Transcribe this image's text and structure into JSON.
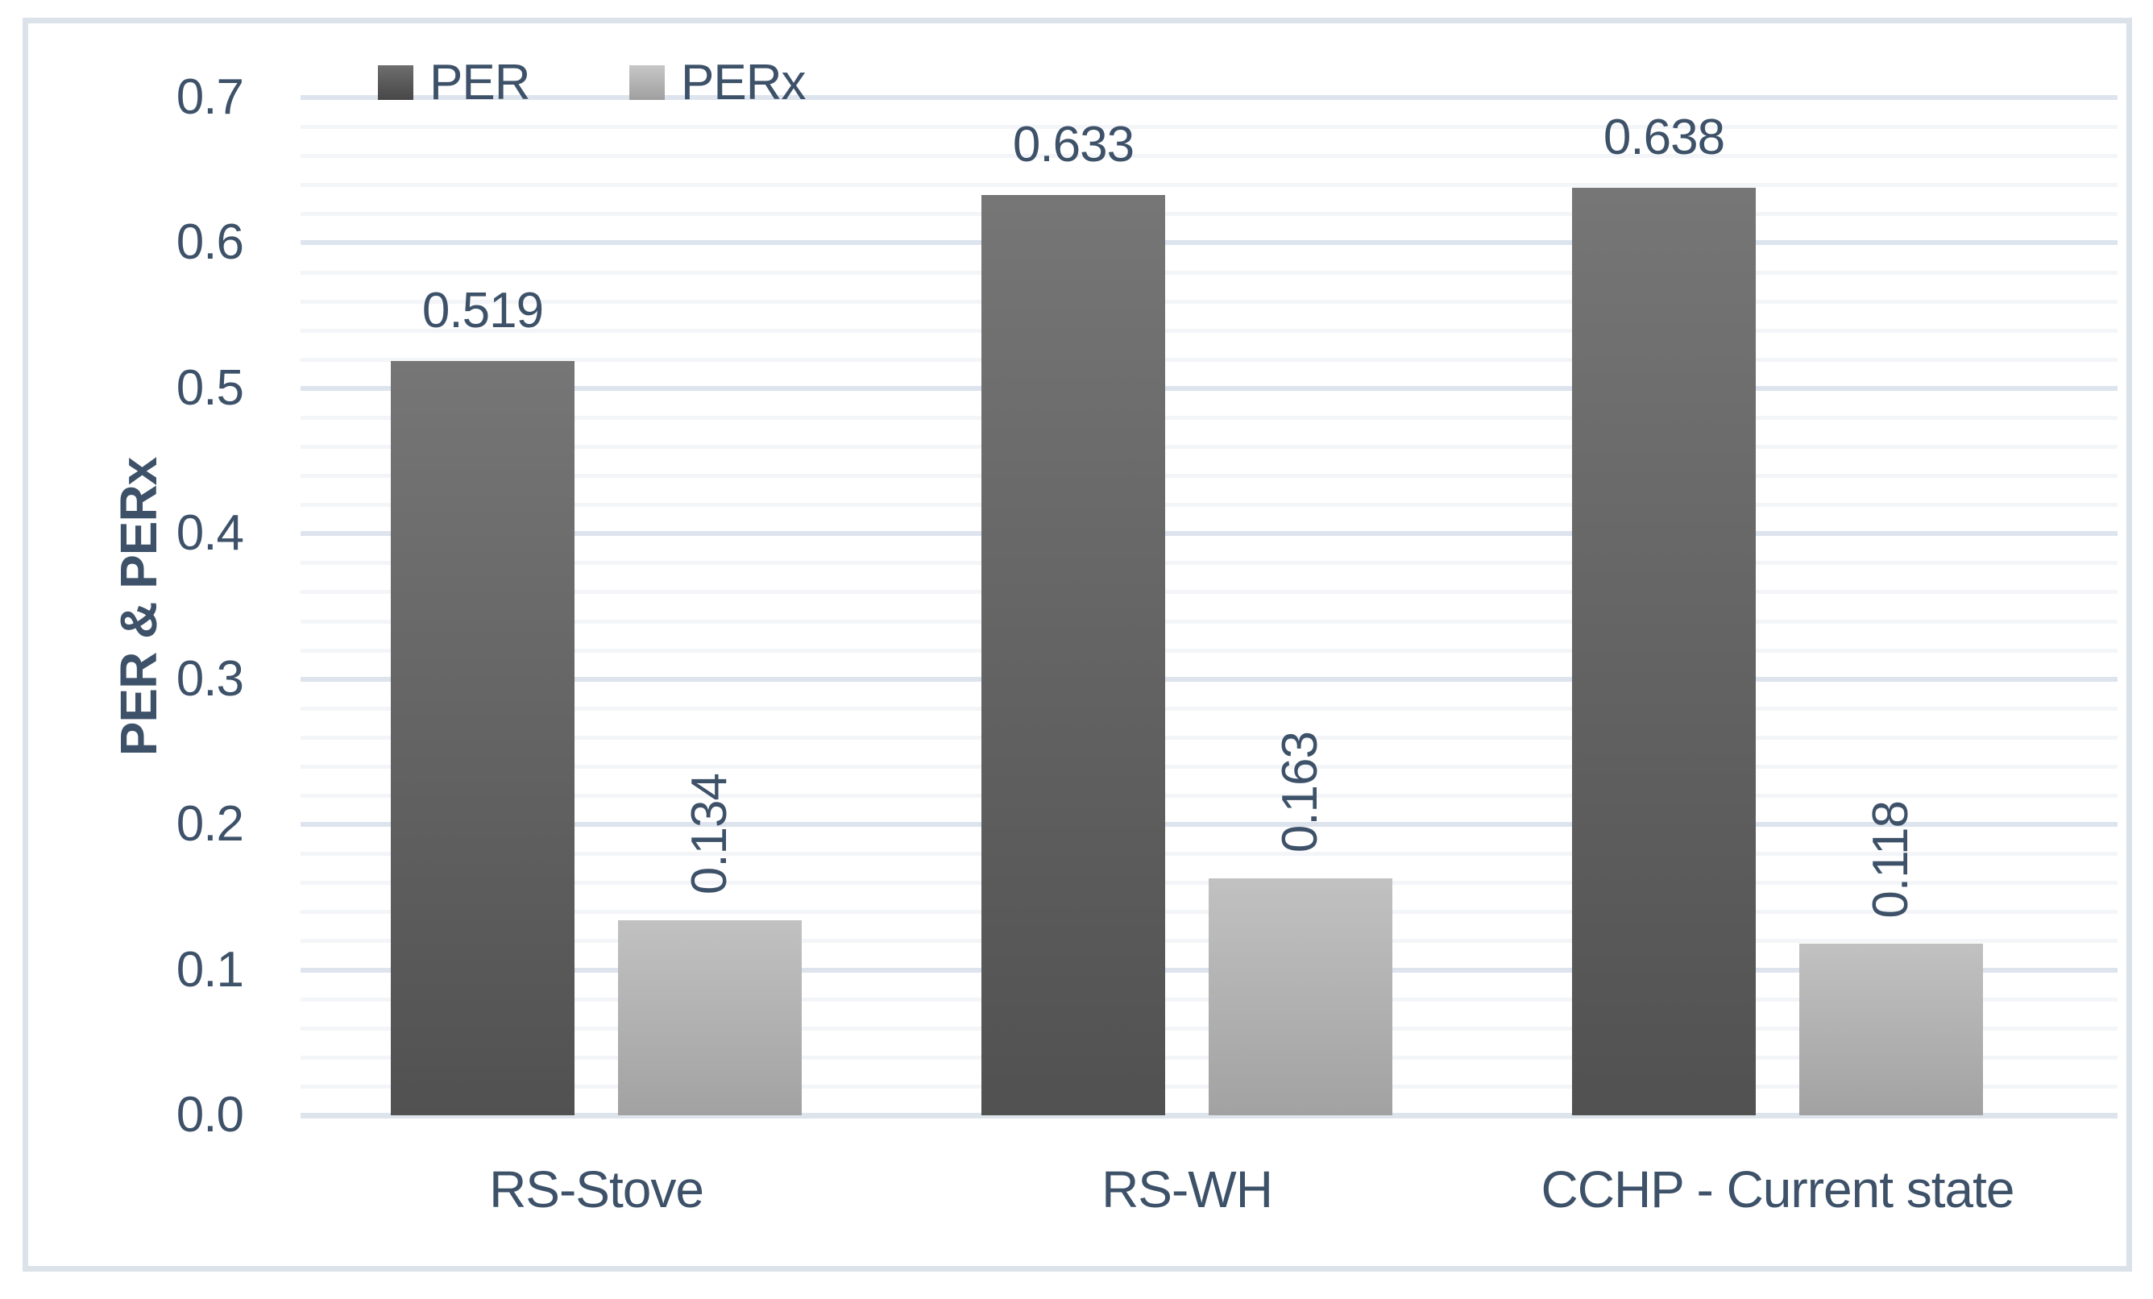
{
  "chart_data": {
    "type": "bar",
    "title": "",
    "xlabel": "",
    "ylabel": "PER & PERx",
    "categories": [
      "RS-Stove",
      "RS-WH",
      "CCHP - Current state"
    ],
    "series": [
      {
        "name": "PER",
        "values": [
          0.519,
          0.633,
          0.638
        ],
        "labels": [
          "0.519",
          "0.633",
          "0.638"
        ],
        "label_orientation": "horizontal"
      },
      {
        "name": "PERx",
        "values": [
          0.134,
          0.163,
          0.118
        ],
        "labels": [
          "0.134",
          "0.163",
          "0.118"
        ],
        "label_orientation": "vertical"
      }
    ],
    "ylim": [
      0.0,
      0.7
    ],
    "yticks": [
      "0.0",
      "0.1",
      "0.2",
      "0.3",
      "0.4",
      "0.5",
      "0.6",
      "0.7"
    ],
    "grid": "horizontal major and minor gridlines",
    "minor_gridline_step": 0.02,
    "major_gridline_step": 0.1,
    "legend_position": "top",
    "legend_entries": [
      "PER",
      "PERx"
    ]
  },
  "colors": {
    "per_bar_top": "#767676",
    "per_bar_bottom": "#515151",
    "perx_bar_top": "#c1c1c1",
    "perx_bar_bottom": "#a2a2a2",
    "text": "#3d5168",
    "gridline_major": "#dde4ed",
    "gridline_minor": "#f3f5f8",
    "axis_baseline": "#dde4ec",
    "chart_border": "#dbe2ea",
    "background": "#ffffff"
  }
}
